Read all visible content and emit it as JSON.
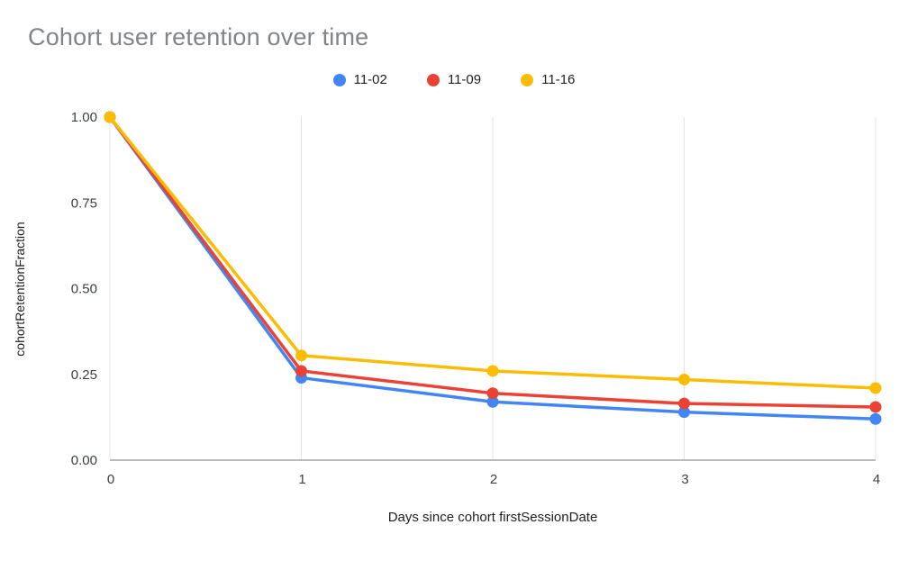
{
  "chart_data": {
    "type": "line",
    "title": "Cohort user retention over time",
    "xlabel": "Days since cohort firstSessionDate",
    "ylabel": "cohortRetentionFraction",
    "x": [
      0,
      1,
      2,
      3,
      4
    ],
    "x_tick_labels": [
      "0",
      "1",
      "2",
      "3",
      "4"
    ],
    "y_ticks": [
      0,
      0.25,
      0.5,
      0.75,
      1
    ],
    "y_tick_labels": [
      "0.00",
      "0.25",
      "0.50",
      "0.75",
      "1.00"
    ],
    "xlim": [
      0,
      4
    ],
    "ylim": [
      0,
      1
    ],
    "grid": "vertical-only",
    "legend_position": "top-center",
    "series": [
      {
        "name": "11-02",
        "color": "#4285F4",
        "values": [
          1.0,
          0.24,
          0.17,
          0.14,
          0.12
        ]
      },
      {
        "name": "11-09",
        "color": "#EA4335",
        "values": [
          1.0,
          0.26,
          0.195,
          0.165,
          0.155
        ]
      },
      {
        "name": "11-16",
        "color": "#FBBC04",
        "values": [
          1.0,
          0.305,
          0.26,
          0.235,
          0.21
        ]
      }
    ],
    "colors": {
      "title_text": "#818589",
      "axis_text": "#3c4043",
      "gridline": "#e3e3e3",
      "baseline": "#757575"
    }
  }
}
